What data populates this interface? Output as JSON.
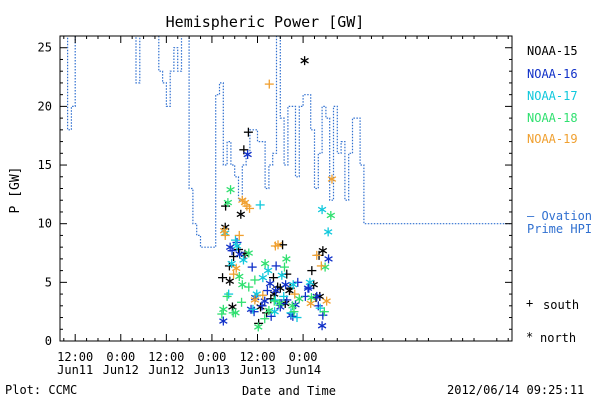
{
  "chart_data": {
    "type": "scatter",
    "title": "Hemispheric Power [GW]",
    "xlabel": "Date and Time",
    "ylabel": "P [GW]",
    "x_range_hours": [
      -16,
      103
    ],
    "ylim": [
      0,
      26
    ],
    "yticks": [
      0,
      5,
      10,
      15,
      20,
      25
    ],
    "x_ticks": [
      {
        "h": -12,
        "time": "12:00",
        "date": "Jun11"
      },
      {
        "h": 0,
        "time": "0:00",
        "date": "Jun12"
      },
      {
        "h": 12,
        "time": "12:00",
        "date": "Jun12"
      },
      {
        "h": 24,
        "time": "0:00",
        "date": "Jun13"
      },
      {
        "h": 36,
        "time": "12:00",
        "date": "Jun13"
      },
      {
        "h": 48,
        "time": "0:00",
        "date": "Jun14"
      }
    ],
    "series": [
      {
        "name": "NOAA-15",
        "color": "#000000"
      },
      {
        "name": "NOAA-16",
        "color": "#1030c8"
      },
      {
        "name": "NOAA-17",
        "color": "#10c8dc"
      },
      {
        "name": "NOAA-18",
        "color": "#30e070"
      },
      {
        "name": "NOAA-19",
        "color": "#f0a030"
      }
    ],
    "ovation_line": {
      "name": "Ovation Prime HPI",
      "color": "#3070d0",
      "steps": [
        [
          -16,
          27
        ],
        [
          -14,
          18
        ],
        [
          -13,
          20
        ],
        [
          -12,
          27
        ],
        [
          -1,
          27
        ],
        [
          0,
          27
        ],
        [
          4,
          22
        ],
        [
          5,
          27
        ],
        [
          8,
          26
        ],
        [
          9,
          27
        ],
        [
          10,
          23
        ],
        [
          11,
          22
        ],
        [
          12,
          20
        ],
        [
          13,
          23
        ],
        [
          14,
          25
        ],
        [
          15,
          23
        ],
        [
          16,
          27
        ],
        [
          18,
          13
        ],
        [
          19,
          10
        ],
        [
          20,
          9
        ],
        [
          21,
          8
        ],
        [
          24,
          8
        ],
        [
          25,
          21
        ],
        [
          26,
          22
        ],
        [
          27,
          15
        ],
        [
          28,
          17
        ],
        [
          29,
          15
        ],
        [
          30,
          14
        ],
        [
          31,
          12
        ],
        [
          32,
          15
        ],
        [
          33,
          16
        ],
        [
          34,
          18
        ],
        [
          36,
          17
        ],
        [
          38,
          13
        ],
        [
          39,
          15
        ],
        [
          40,
          16
        ],
        [
          41,
          26
        ],
        [
          42,
          19
        ],
        [
          43,
          15
        ],
        [
          44,
          20
        ],
        [
          46,
          14
        ],
        [
          47,
          20
        ],
        [
          48,
          21
        ],
        [
          50,
          18
        ],
        [
          51,
          13
        ],
        [
          52,
          16
        ],
        [
          53,
          20
        ],
        [
          54,
          19
        ],
        [
          55,
          12
        ],
        [
          56,
          20
        ],
        [
          57,
          16
        ],
        [
          58,
          17
        ],
        [
          59,
          12
        ],
        [
          60,
          16
        ],
        [
          61,
          19
        ],
        [
          63,
          15
        ],
        [
          64,
          10
        ]
      ]
    },
    "markers": [
      {
        "s": 0,
        "m": "+",
        "x": 26.8,
        "y": 5.4
      },
      {
        "s": 0,
        "m": "+",
        "x": 27.6,
        "y": 11.5
      },
      {
        "s": 0,
        "m": "+",
        "x": 28.6,
        "y": 6.4
      },
      {
        "s": 0,
        "m": "+",
        "x": 29.7,
        "y": 7.2
      },
      {
        "s": 0,
        "m": "+",
        "x": 31.0,
        "y": 7.8
      },
      {
        "s": 0,
        "m": "+",
        "x": 32.4,
        "y": 16.3
      },
      {
        "s": 0,
        "m": "+",
        "x": 33.6,
        "y": 17.8
      },
      {
        "s": 0,
        "m": "+",
        "x": 36.3,
        "y": 1.5
      },
      {
        "s": 0,
        "m": "+",
        "x": 38.4,
        "y": 2.4
      },
      {
        "s": 0,
        "m": "+",
        "x": 39.5,
        "y": 3.6
      },
      {
        "s": 0,
        "m": "+",
        "x": 40.2,
        "y": 5.4
      },
      {
        "s": 0,
        "m": "+",
        "x": 41.3,
        "y": 4.6
      },
      {
        "s": 0,
        "m": "+",
        "x": 42.6,
        "y": 8.2
      },
      {
        "s": 0,
        "m": "+",
        "x": 43.7,
        "y": 5.7
      },
      {
        "s": 0,
        "m": "+",
        "x": 44.6,
        "y": 4.5
      },
      {
        "s": 0,
        "m": "+",
        "x": 50.3,
        "y": 6.0
      },
      {
        "s": 0,
        "m": "+",
        "x": 51.4,
        "y": 3.7
      },
      {
        "s": 0,
        "m": "+",
        "x": 52.2,
        "y": 7.3
      },
      {
        "s": 0,
        "m": "*",
        "x": 27.5,
        "y": 9.7
      },
      {
        "s": 0,
        "m": "*",
        "x": 28.7,
        "y": 5.1
      },
      {
        "s": 0,
        "m": "*",
        "x": 29.4,
        "y": 2.9
      },
      {
        "s": 0,
        "m": "*",
        "x": 31.6,
        "y": 10.8
      },
      {
        "s": 0,
        "m": "*",
        "x": 32.7,
        "y": 7.4
      },
      {
        "s": 0,
        "m": "*",
        "x": 36.8,
        "y": 2.9
      },
      {
        "s": 0,
        "m": "*",
        "x": 40.4,
        "y": 4.0
      },
      {
        "s": 0,
        "m": "*",
        "x": 42.0,
        "y": 4.5
      },
      {
        "s": 0,
        "m": "*",
        "x": 43.3,
        "y": 3.2
      },
      {
        "s": 0,
        "m": "*",
        "x": 44.4,
        "y": 4.3
      },
      {
        "s": 0,
        "m": "*",
        "x": 48.4,
        "y": 23.9
      },
      {
        "s": 0,
        "m": "*",
        "x": 50.8,
        "y": 4.8
      },
      {
        "s": 0,
        "m": "*",
        "x": 52.4,
        "y": 3.8
      },
      {
        "s": 0,
        "m": "*",
        "x": 53.2,
        "y": 7.7
      },
      {
        "s": 1,
        "m": "+",
        "x": 29.3,
        "y": 7.7
      },
      {
        "s": 1,
        "m": "+",
        "x": 30.6,
        "y": 8.4
      },
      {
        "s": 1,
        "m": "+",
        "x": 34.6,
        "y": 6.3
      },
      {
        "s": 1,
        "m": "+",
        "x": 35.1,
        "y": 2.5
      },
      {
        "s": 1,
        "m": "+",
        "x": 37.2,
        "y": 3.0
      },
      {
        "s": 1,
        "m": "+",
        "x": 38.6,
        "y": 4.3
      },
      {
        "s": 1,
        "m": "+",
        "x": 39.6,
        "y": 2.1
      },
      {
        "s": 1,
        "m": "+",
        "x": 40.9,
        "y": 6.4
      },
      {
        "s": 1,
        "m": "+",
        "x": 42.2,
        "y": 3.2
      },
      {
        "s": 1,
        "m": "+",
        "x": 43.7,
        "y": 3.5
      },
      {
        "s": 1,
        "m": "+",
        "x": 45.3,
        "y": 2.1
      },
      {
        "s": 1,
        "m": "+",
        "x": 46.6,
        "y": 5.0
      },
      {
        "s": 1,
        "m": "+",
        "x": 48.6,
        "y": 3.8
      },
      {
        "s": 1,
        "m": "+",
        "x": 49.5,
        "y": 4.5
      },
      {
        "s": 1,
        "m": "+",
        "x": 52.0,
        "y": 3.0
      },
      {
        "s": 1,
        "m": "+",
        "x": 53.2,
        "y": 2.2
      },
      {
        "s": 1,
        "m": "*",
        "x": 27.0,
        "y": 1.7
      },
      {
        "s": 1,
        "m": "*",
        "x": 28.8,
        "y": 8.0
      },
      {
        "s": 1,
        "m": "*",
        "x": 31.3,
        "y": 7.4
      },
      {
        "s": 1,
        "m": "*",
        "x": 33.4,
        "y": 15.9
      },
      {
        "s": 1,
        "m": "*",
        "x": 34.3,
        "y": 2.7
      },
      {
        "s": 1,
        "m": "*",
        "x": 35.4,
        "y": 3.7
      },
      {
        "s": 1,
        "m": "*",
        "x": 37.9,
        "y": 3.4
      },
      {
        "s": 1,
        "m": "*",
        "x": 39.3,
        "y": 4.9
      },
      {
        "s": 1,
        "m": "*",
        "x": 40.8,
        "y": 4.3
      },
      {
        "s": 1,
        "m": "*",
        "x": 42.0,
        "y": 2.9
      },
      {
        "s": 1,
        "m": "*",
        "x": 43.4,
        "y": 4.8
      },
      {
        "s": 1,
        "m": "*",
        "x": 44.8,
        "y": 2.2
      },
      {
        "s": 1,
        "m": "*",
        "x": 46.0,
        "y": 3.1
      },
      {
        "s": 1,
        "m": "*",
        "x": 49.3,
        "y": 4.5
      },
      {
        "s": 1,
        "m": "*",
        "x": 51.6,
        "y": 3.8
      },
      {
        "s": 1,
        "m": "*",
        "x": 53.0,
        "y": 1.3
      },
      {
        "s": 1,
        "m": "*",
        "x": 54.7,
        "y": 7.0
      },
      {
        "s": 2,
        "m": "+",
        "x": 28.4,
        "y": 4.0
      },
      {
        "s": 2,
        "m": "+",
        "x": 30.2,
        "y": 8.6
      },
      {
        "s": 2,
        "m": "+",
        "x": 34.8,
        "y": 2.7
      },
      {
        "s": 2,
        "m": "+",
        "x": 36.7,
        "y": 11.6
      },
      {
        "s": 2,
        "m": "+",
        "x": 40.7,
        "y": 3.5
      },
      {
        "s": 2,
        "m": "+",
        "x": 42.9,
        "y": 3.8
      },
      {
        "s": 2,
        "m": "+",
        "x": 44.8,
        "y": 2.4
      },
      {
        "s": 2,
        "m": "+",
        "x": 46.4,
        "y": 2.0
      },
      {
        "s": 2,
        "m": "+",
        "x": 52.5,
        "y": 2.8
      },
      {
        "s": 2,
        "m": "*",
        "x": 27.5,
        "y": 9.2
      },
      {
        "s": 2,
        "m": "*",
        "x": 29.2,
        "y": 6.6
      },
      {
        "s": 2,
        "m": "*",
        "x": 30.6,
        "y": 8.1
      },
      {
        "s": 2,
        "m": "*",
        "x": 32.3,
        "y": 6.9
      },
      {
        "s": 2,
        "m": "*",
        "x": 35.8,
        "y": 4.0
      },
      {
        "s": 2,
        "m": "*",
        "x": 37.4,
        "y": 5.4
      },
      {
        "s": 2,
        "m": "*",
        "x": 38.8,
        "y": 6.0
      },
      {
        "s": 2,
        "m": "*",
        "x": 40.5,
        "y": 2.5
      },
      {
        "s": 2,
        "m": "*",
        "x": 42.4,
        "y": 5.6
      },
      {
        "s": 2,
        "m": "*",
        "x": 45.4,
        "y": 4.8
      },
      {
        "s": 2,
        "m": "*",
        "x": 49.8,
        "y": 5.0
      },
      {
        "s": 2,
        "m": "*",
        "x": 53.0,
        "y": 11.2
      },
      {
        "s": 2,
        "m": "*",
        "x": 54.6,
        "y": 9.3
      },
      {
        "s": 3,
        "m": "+",
        "x": 26.6,
        "y": 2.3
      },
      {
        "s": 3,
        "m": "+",
        "x": 28.0,
        "y": 3.8
      },
      {
        "s": 3,
        "m": "+",
        "x": 29.6,
        "y": 2.4
      },
      {
        "s": 3,
        "m": "+",
        "x": 31.8,
        "y": 3.3
      },
      {
        "s": 3,
        "m": "+",
        "x": 33.7,
        "y": 4.6
      },
      {
        "s": 3,
        "m": "+",
        "x": 35.3,
        "y": 5.2
      },
      {
        "s": 3,
        "m": "+",
        "x": 37.9,
        "y": 1.9
      },
      {
        "s": 3,
        "m": "+",
        "x": 40.4,
        "y": 3.4
      },
      {
        "s": 3,
        "m": "+",
        "x": 43.1,
        "y": 6.3
      },
      {
        "s": 3,
        "m": "+",
        "x": 45.6,
        "y": 2.5
      },
      {
        "s": 3,
        "m": "+",
        "x": 53.6,
        "y": 2.5
      },
      {
        "s": 3,
        "m": "*",
        "x": 27.0,
        "y": 2.7
      },
      {
        "s": 3,
        "m": "*",
        "x": 28.2,
        "y": 11.8
      },
      {
        "s": 3,
        "m": "*",
        "x": 28.9,
        "y": 12.9
      },
      {
        "s": 3,
        "m": "*",
        "x": 30.2,
        "y": 2.4
      },
      {
        "s": 3,
        "m": "*",
        "x": 31.2,
        "y": 5.5
      },
      {
        "s": 3,
        "m": "*",
        "x": 32.0,
        "y": 4.8
      },
      {
        "s": 3,
        "m": "*",
        "x": 33.7,
        "y": 7.5
      },
      {
        "s": 3,
        "m": "*",
        "x": 36.2,
        "y": 1.2
      },
      {
        "s": 3,
        "m": "*",
        "x": 38.0,
        "y": 6.6
      },
      {
        "s": 3,
        "m": "*",
        "x": 39.0,
        "y": 2.6
      },
      {
        "s": 3,
        "m": "*",
        "x": 41.8,
        "y": 3.2
      },
      {
        "s": 3,
        "m": "*",
        "x": 43.6,
        "y": 7.0
      },
      {
        "s": 3,
        "m": "*",
        "x": 45.2,
        "y": 3.0
      },
      {
        "s": 3,
        "m": "*",
        "x": 47.0,
        "y": 3.6
      },
      {
        "s": 3,
        "m": "*",
        "x": 50.2,
        "y": 3.7
      },
      {
        "s": 3,
        "m": "*",
        "x": 53.8,
        "y": 6.3
      },
      {
        "s": 3,
        "m": "*",
        "x": 55.3,
        "y": 10.7
      },
      {
        "s": 4,
        "m": "+",
        "x": 27.5,
        "y": 9.0
      },
      {
        "s": 4,
        "m": "+",
        "x": 29.7,
        "y": 5.7
      },
      {
        "s": 4,
        "m": "+",
        "x": 31.2,
        "y": 9.0
      },
      {
        "s": 4,
        "m": "+",
        "x": 33.2,
        "y": 11.5
      },
      {
        "s": 4,
        "m": "+",
        "x": 33.9,
        "y": 11.3
      },
      {
        "s": 4,
        "m": "+",
        "x": 37.4,
        "y": 3.9
      },
      {
        "s": 4,
        "m": "+",
        "x": 39.1,
        "y": 21.9
      },
      {
        "s": 4,
        "m": "+",
        "x": 40.7,
        "y": 8.1
      },
      {
        "s": 4,
        "m": "+",
        "x": 45.8,
        "y": 4.0
      },
      {
        "s": 4,
        "m": "+",
        "x": 51.6,
        "y": 7.3
      },
      {
        "s": 4,
        "m": "+",
        "x": 52.8,
        "y": 6.4
      },
      {
        "s": 4,
        "m": "*",
        "x": 27.2,
        "y": 9.4
      },
      {
        "s": 4,
        "m": "*",
        "x": 30.4,
        "y": 6.2
      },
      {
        "s": 4,
        "m": "*",
        "x": 32.0,
        "y": 12.0
      },
      {
        "s": 4,
        "m": "*",
        "x": 32.7,
        "y": 11.8
      },
      {
        "s": 4,
        "m": "*",
        "x": 35.3,
        "y": 3.5
      },
      {
        "s": 4,
        "m": "*",
        "x": 41.4,
        "y": 8.2
      },
      {
        "s": 4,
        "m": "*",
        "x": 50.0,
        "y": 3.2
      },
      {
        "s": 4,
        "m": "*",
        "x": 54.2,
        "y": 3.4
      },
      {
        "s": 4,
        "m": "*",
        "x": 55.6,
        "y": 13.8
      }
    ]
  },
  "legend": {
    "items": [
      "NOAA-15",
      "NOAA-16",
      "NOAA-17",
      "NOAA-18",
      "NOAA-19"
    ],
    "ovation_prefix": "– Ovation",
    "ovation_suffix": "Prime HPI",
    "south_label": "south",
    "north_label": "north"
  },
  "footer": {
    "plot_credit": "Plot: CCMC",
    "timestamp": "2012/06/14 09:25:11"
  }
}
